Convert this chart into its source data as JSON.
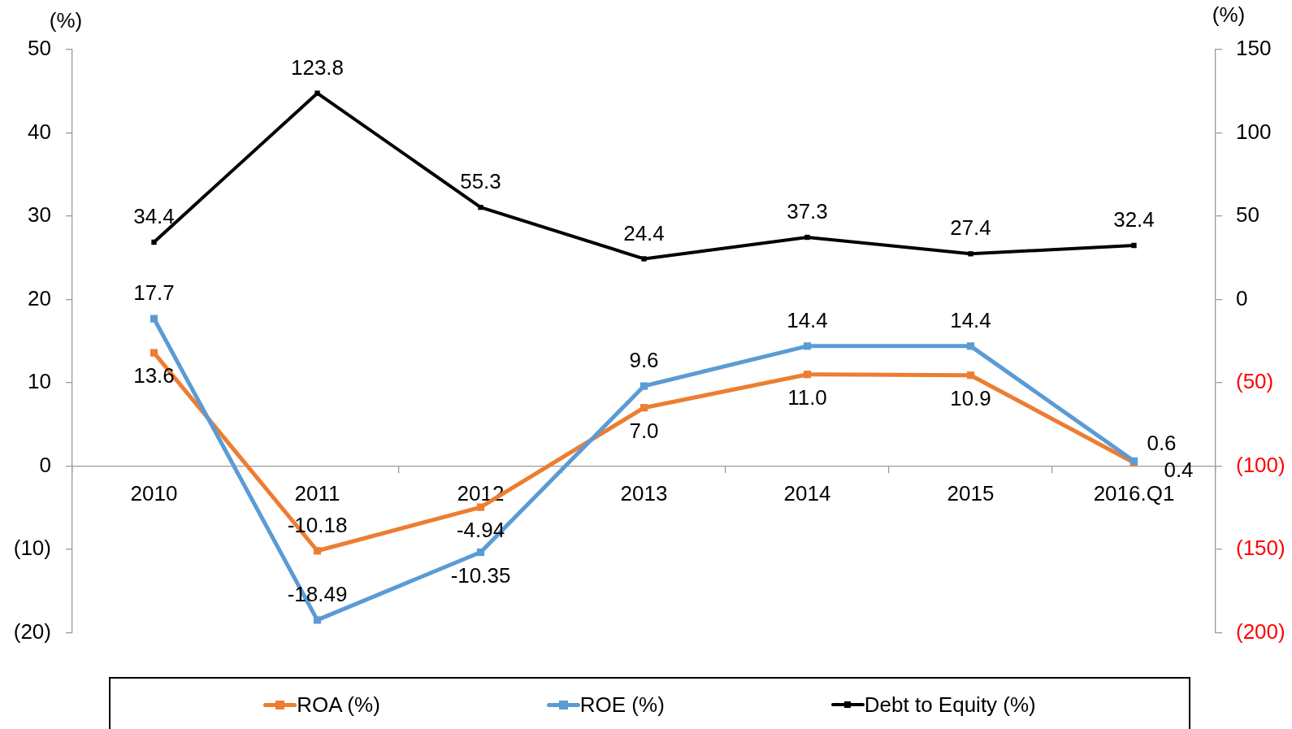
{
  "chart_data": {
    "type": "line",
    "ylabel": "(%)",
    "y2label": "(%)",
    "categories": [
      "2010",
      "2011",
      "2012",
      "2013",
      "2014",
      "2015",
      "2016.Q1"
    ],
    "series": [
      {
        "name": "ROA (%)",
        "color": "#ed7d31",
        "values": [
          13.6,
          -10.18,
          -4.94,
          7.0,
          11.0,
          10.9,
          0.4
        ],
        "value_labels": [
          "13.6",
          "-10.18",
          "-4.94",
          "7.0",
          "11.0",
          "10.9",
          "0.4"
        ]
      },
      {
        "name": "ROE (%)",
        "color": "#5b9bd5",
        "values": [
          17.7,
          -18.49,
          -10.35,
          9.6,
          14.4,
          14.4,
          0.6
        ],
        "value_labels": [
          "17.7",
          "-18.49",
          "-10.35",
          "9.6",
          "14.4",
          "14.4",
          "0.6"
        ]
      },
      {
        "name": "Debt to Equity (%)",
        "color": "#000000",
        "axis": "y2",
        "values": [
          34.4,
          123.8,
          55.3,
          24.4,
          37.3,
          27.4,
          32.4
        ],
        "value_labels": [
          "34.4",
          "123.8",
          "55.3",
          "24.4",
          "37.3",
          "27.4",
          "32.4"
        ]
      }
    ],
    "ylim": [
      -20,
      50
    ],
    "yticks": [
      {
        "value": -20,
        "label": "(20)"
      },
      {
        "value": -10,
        "label": "(10)"
      },
      0,
      10,
      20,
      30,
      40,
      50
    ],
    "y2lim": [
      -200,
      150
    ],
    "y2ticks": [
      {
        "value": -200,
        "label": "(200)"
      },
      {
        "value": -150,
        "label": "(150)"
      },
      {
        "value": -100,
        "label": "(100)"
      },
      {
        "value": -50,
        "label": "(50)"
      },
      0,
      50,
      100,
      150
    ],
    "marker": "square",
    "line_style": "solid",
    "grid": false,
    "legend": "bottom"
  }
}
